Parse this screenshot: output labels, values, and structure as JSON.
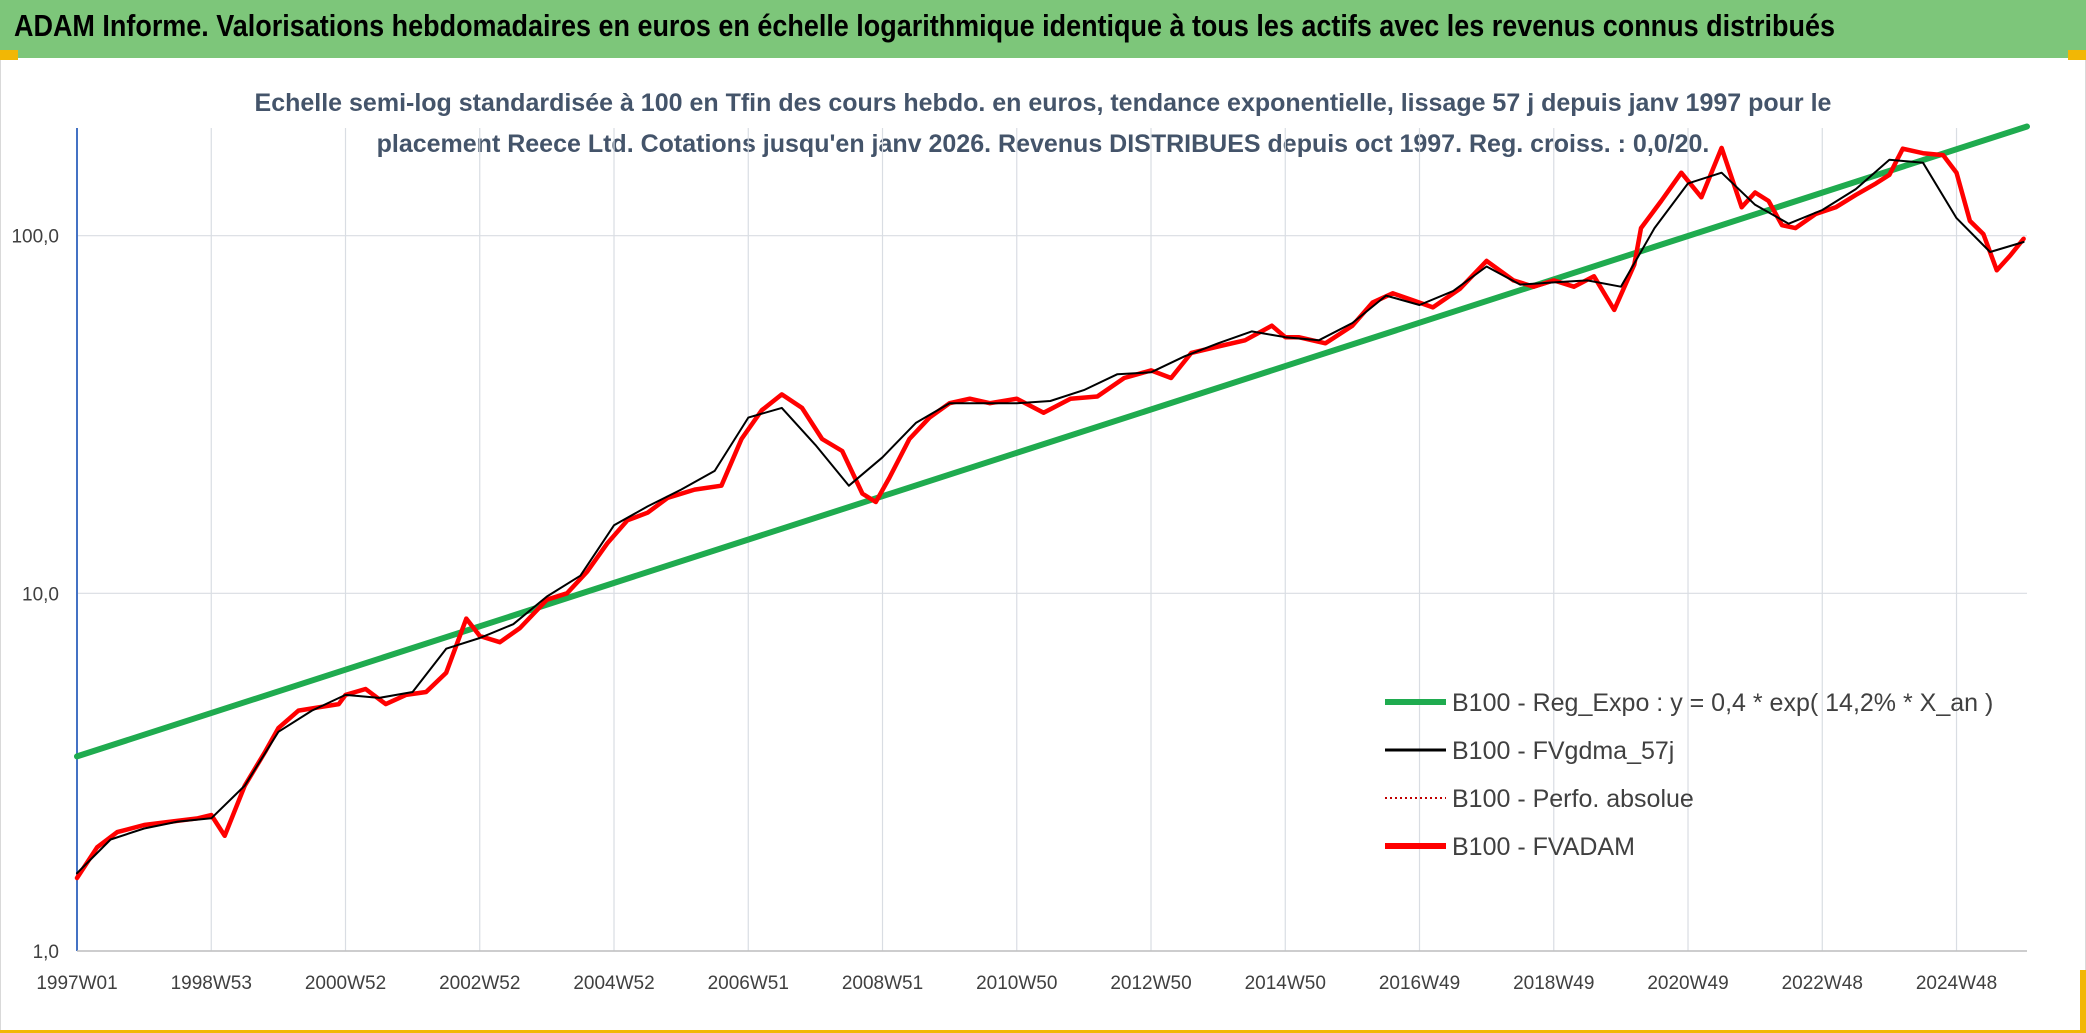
{
  "header": {
    "title": "ADAM Informe. Valorisations hebdomadaires en euros en échelle logarithmique identique à tous les actifs avec les revenus connus distribués"
  },
  "chart_data": {
    "type": "line",
    "title_line1": "Echelle semi-log standardisée à 100 en Tfin des cours hebdo. en euros, tendance exponentielle, lissage 57 j depuis janv 1997 pour le",
    "title_line2": "placement Reece Ltd. Cotations jusqu'en janv 2026. Revenus DISTRIBUES depuis oct 1997. Reg. croiss. : 0,0/20.",
    "y_scale": "log",
    "ylim": [
      1,
      200
    ],
    "y_ticks": [
      {
        "value": 1,
        "label": "1,0"
      },
      {
        "value": 10,
        "label": "10,0"
      },
      {
        "value": 100,
        "label": "100,0"
      }
    ],
    "x_range": [
      1997.0,
      2026.05
    ],
    "x_ticks": [
      {
        "value": 1997.0,
        "label": "1997W01"
      },
      {
        "value": 1999.0,
        "label": "1998W53"
      },
      {
        "value": 2001.0,
        "label": "2000W52"
      },
      {
        "value": 2003.0,
        "label": "2002W52"
      },
      {
        "value": 2005.0,
        "label": "2004W52"
      },
      {
        "value": 2007.0,
        "label": "2006W51"
      },
      {
        "value": 2009.0,
        "label": "2008W51"
      },
      {
        "value": 2011.0,
        "label": "2010W50"
      },
      {
        "value": 2013.0,
        "label": "2012W50"
      },
      {
        "value": 2015.0,
        "label": "2014W50"
      },
      {
        "value": 2017.0,
        "label": "2016W49"
      },
      {
        "value": 2019.0,
        "label": "2018W49"
      },
      {
        "value": 2021.0,
        "label": "2020W49"
      },
      {
        "value": 2023.0,
        "label": "2022W48"
      },
      {
        "value": 2025.0,
        "label": "2024W48"
      }
    ],
    "grid": true,
    "legend_position": "bottom-right",
    "legend": [
      {
        "label": "B100 - Reg_Expo : y = 0,4 * exp( 14,2% *  X_an )",
        "color": "#1fab4f",
        "style": "solid-thick"
      },
      {
        "label": "B100 - FVgdma_57j",
        "color": "#000000",
        "style": "solid"
      },
      {
        "label": "B100 - Perfo. absolue",
        "color": "#c00000",
        "style": "dotted"
      },
      {
        "label": "B100 - FVADAM",
        "color": "#ff0000",
        "style": "solid-thick"
      }
    ],
    "series": [
      {
        "name": "B100 - Reg_Expo : y = 0,4 * exp( 14,2% *  X_an )",
        "color": "#1fab4f",
        "x": [
          1997.0,
          2026.05
        ],
        "y": [
          3.5,
          202
        ]
      },
      {
        "name": "B100 - FVADAM",
        "color": "#ff0000",
        "x": [
          1997.0,
          1997.3,
          1997.6,
          1998.0,
          1998.4,
          1998.8,
          1999.0,
          1999.2,
          1999.5,
          1999.8,
          2000.0,
          2000.3,
          2000.6,
          2000.9,
          2001.0,
          2001.3,
          2001.6,
          2001.9,
          2002.2,
          2002.5,
          2002.8,
          2003.0,
          2003.3,
          2003.6,
          2004.0,
          2004.3,
          2004.6,
          2004.9,
          2005.2,
          2005.5,
          2005.8,
          2006.2,
          2006.6,
          2006.9,
          2007.2,
          2007.5,
          2007.8,
          2008.1,
          2008.4,
          2008.7,
          2008.9,
          2009.1,
          2009.4,
          2009.7,
          2010.0,
          2010.3,
          2010.6,
          2011.0,
          2011.4,
          2011.8,
          2012.2,
          2012.6,
          2013.0,
          2013.3,
          2013.6,
          2014.0,
          2014.4,
          2014.8,
          2015.0,
          2015.2,
          2015.6,
          2016.0,
          2016.3,
          2016.6,
          2016.9,
          2017.2,
          2017.6,
          2018.0,
          2018.4,
          2018.7,
          2019.0,
          2019.3,
          2019.6,
          2019.9,
          2020.2,
          2020.3,
          2020.6,
          2020.9,
          2021.2,
          2021.5,
          2021.8,
          2022.0,
          2022.2,
          2022.4,
          2022.6,
          2022.9,
          2023.2,
          2023.5,
          2023.8,
          2024.0,
          2024.2,
          2024.5,
          2024.8,
          2025.0,
          2025.2,
          2025.4,
          2025.6,
          2025.8,
          2026.0
        ],
        "y": [
          1.6,
          1.95,
          2.15,
          2.25,
          2.3,
          2.35,
          2.4,
          2.1,
          2.9,
          3.6,
          4.2,
          4.7,
          4.8,
          4.9,
          5.2,
          5.4,
          4.9,
          5.2,
          5.3,
          6.0,
          8.5,
          7.6,
          7.3,
          8.0,
          9.6,
          10.0,
          11.5,
          13.8,
          16.0,
          16.8,
          18.5,
          19.5,
          20.0,
          27.0,
          32.5,
          36.0,
          33.0,
          27.0,
          25.0,
          19.0,
          18.0,
          21.0,
          27.0,
          31.0,
          34.0,
          35.0,
          34.0,
          35.0,
          32.0,
          35.0,
          35.5,
          40.0,
          42.0,
          40.0,
          47.0,
          49.0,
          51.0,
          56.0,
          52.0,
          52.0,
          50.0,
          56.0,
          65.0,
          69.0,
          66.0,
          63.0,
          71.0,
          85.0,
          75.0,
          72.0,
          75.0,
          72.0,
          77.0,
          62.0,
          83.0,
          105.0,
          125.0,
          150.0,
          128.0,
          176.0,
          120.0,
          132.0,
          125.0,
          107.0,
          105.0,
          115.0,
          120.0,
          130.0,
          140.0,
          148.0,
          175.0,
          170.0,
          168.0,
          150.0,
          110.0,
          101.0,
          80.0,
          88.0,
          98.0
        ]
      },
      {
        "name": "B100 - FVgdma_57j",
        "color": "#000000",
        "x": [
          1997.0,
          1997.5,
          1998.0,
          1998.5,
          1999.0,
          1999.5,
          2000.0,
          2000.5,
          2001.0,
          2001.5,
          2002.0,
          2002.5,
          2003.0,
          2003.5,
          2004.0,
          2004.5,
          2005.0,
          2005.5,
          2006.0,
          2006.5,
          2007.0,
          2007.5,
          2008.0,
          2008.5,
          2009.0,
          2009.5,
          2010.0,
          2010.5,
          2011.0,
          2011.5,
          2012.0,
          2012.5,
          2013.0,
          2013.5,
          2014.0,
          2014.5,
          2015.0,
          2015.5,
          2016.0,
          2016.5,
          2017.0,
          2017.5,
          2018.0,
          2018.5,
          2019.0,
          2019.5,
          2020.0,
          2020.5,
          2021.0,
          2021.5,
          2022.0,
          2022.5,
          2023.0,
          2023.5,
          2024.0,
          2024.5,
          2025.0,
          2025.5,
          2026.0
        ],
        "y": [
          1.65,
          2.05,
          2.2,
          2.3,
          2.35,
          2.9,
          4.1,
          4.7,
          5.2,
          5.1,
          5.3,
          7.0,
          7.5,
          8.2,
          9.8,
          11.2,
          15.5,
          17.5,
          19.5,
          22.0,
          31.0,
          33.0,
          26.0,
          20.0,
          24.0,
          30.0,
          34.0,
          34.0,
          34.0,
          34.5,
          37.0,
          41.0,
          41.5,
          46.0,
          50.0,
          54.0,
          52.0,
          51.0,
          57.0,
          68.0,
          64.0,
          70.0,
          82.0,
          73.0,
          74.0,
          75.0,
          72.0,
          105.0,
          140.0,
          150.0,
          122.0,
          108.0,
          118.0,
          135.0,
          163.0,
          160.0,
          112.0,
          90.0,
          96.0
        ]
      }
    ]
  }
}
